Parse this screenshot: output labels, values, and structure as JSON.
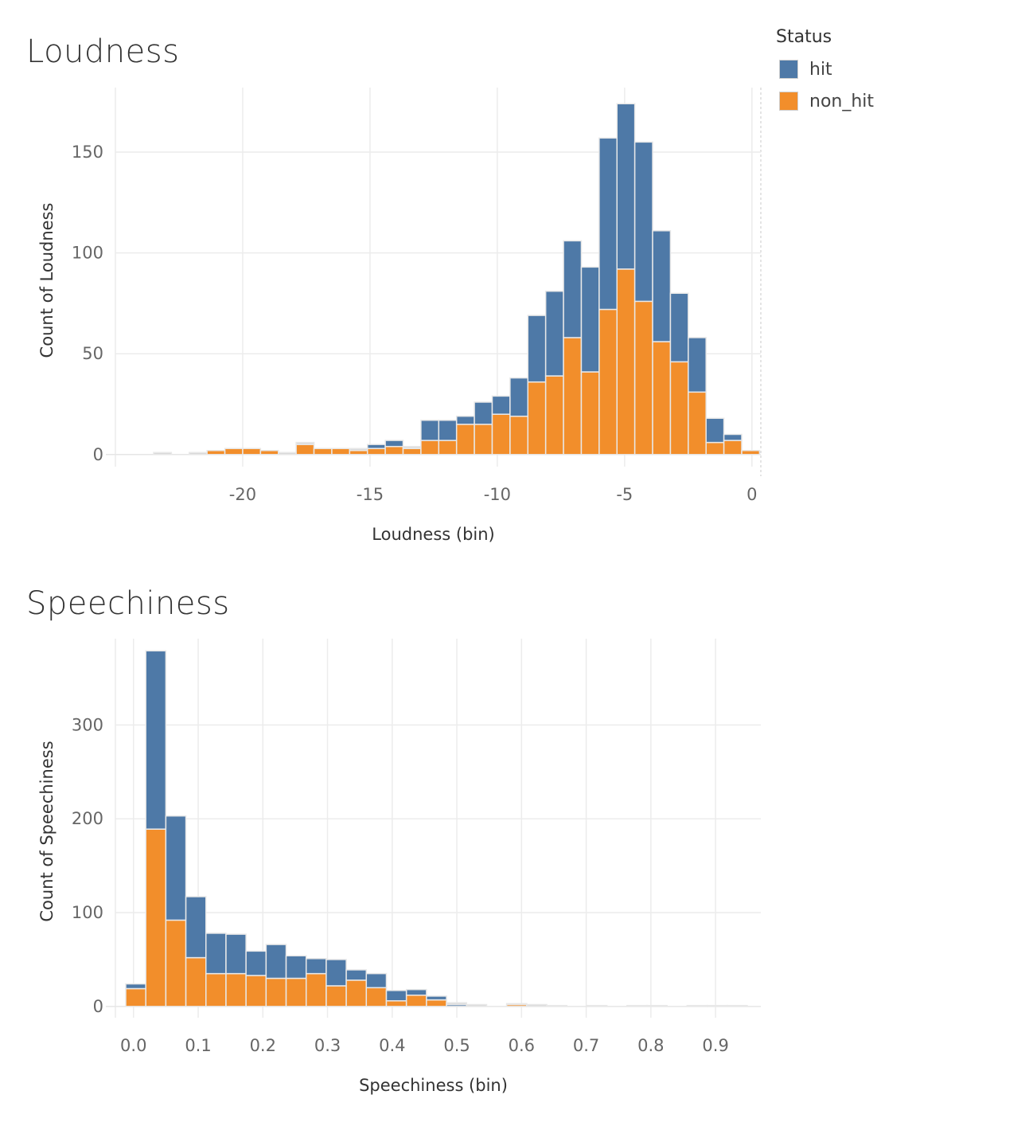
{
  "legend": {
    "title": "Status",
    "items": [
      {
        "label": "hit",
        "color": "#4e79a7"
      },
      {
        "label": "non_hit",
        "color": "#f28e2b"
      }
    ]
  },
  "chart_data": [
    {
      "type": "bar",
      "stacked": true,
      "title": "Loudness",
      "xlabel": "Loudness (bin)",
      "ylabel": "Count of Loudness",
      "bin_width": 0.7,
      "xlim": [
        -25.0,
        0.35
      ],
      "ylim": [
        -6,
        182
      ],
      "xticks": [
        -20,
        -15,
        -10,
        -5,
        0
      ],
      "yticks": [
        0,
        50,
        100,
        150
      ],
      "grid": true,
      "bins": [
        -23.5,
        -22.1,
        -21.4,
        -20.7,
        -20.0,
        -19.3,
        -18.6,
        -17.9,
        -17.2,
        -16.5,
        -15.8,
        -15.1,
        -14.4,
        -13.7,
        -13.0,
        -12.3,
        -11.6,
        -10.9,
        -10.2,
        -9.5,
        -8.8,
        -8.1,
        -7.4,
        -6.7,
        -6.0,
        -5.3,
        -4.6,
        -3.9,
        -3.2,
        -2.5,
        -1.8,
        -1.1,
        -0.4
      ],
      "series": [
        {
          "name": "non_hit",
          "color": "#f28e2b",
          "values": [
            0,
            0,
            2,
            3,
            3,
            2,
            0,
            5,
            3,
            3,
            2,
            3,
            4,
            3,
            7,
            7,
            15,
            15,
            20,
            19,
            36,
            39,
            58,
            41,
            72,
            92,
            76,
            56,
            46,
            31,
            6,
            7,
            2
          ]
        },
        {
          "name": "hit",
          "color": "#4e79a7",
          "values": [
            0,
            0,
            0,
            0,
            0,
            0,
            0,
            0,
            0,
            0,
            0,
            2,
            3,
            0,
            10,
            10,
            4,
            11,
            9,
            19,
            33,
            42,
            48,
            52,
            85,
            82,
            79,
            55,
            34,
            27,
            12,
            3,
            0
          ]
        },
        {
          "name": "",
          "color": "#d9d9d9",
          "values": [
            1,
            1,
            0,
            0,
            0,
            0,
            1,
            1,
            0,
            0,
            1,
            0,
            0,
            1,
            0,
            0,
            0,
            0,
            0,
            0,
            0,
            0,
            0,
            0,
            0,
            0,
            0,
            0,
            0,
            0,
            0,
            0,
            0
          ]
        }
      ]
    },
    {
      "type": "bar",
      "stacked": true,
      "title": "Speechiness",
      "xlabel": "Speechiness (bin)",
      "ylabel": "Count of Speechiness",
      "bin_width": 0.031,
      "xlim": [
        -0.028,
        0.97
      ],
      "ylim": [
        -12,
        392
      ],
      "xticks": [
        0.0,
        0.1,
        0.2,
        0.3,
        0.4,
        0.5,
        0.6,
        0.7,
        0.8,
        0.9
      ],
      "yticks": [
        0,
        100,
        200,
        300
      ],
      "grid": true,
      "bins": [
        -0.012,
        0.019,
        0.05,
        0.081,
        0.112,
        0.143,
        0.174,
        0.205,
        0.236,
        0.267,
        0.298,
        0.329,
        0.36,
        0.391,
        0.422,
        0.453,
        0.484,
        0.515,
        0.546,
        0.577,
        0.608,
        0.639,
        0.67,
        0.701,
        0.732,
        0.763,
        0.794,
        0.825,
        0.856,
        0.887,
        0.918
      ],
      "series": [
        {
          "name": "non_hit",
          "color": "#f28e2b",
          "values": [
            19,
            189,
            92,
            52,
            35,
            35,
            33,
            30,
            30,
            35,
            22,
            28,
            20,
            6,
            12,
            7,
            0,
            0,
            0,
            2,
            0,
            0,
            0,
            0,
            0,
            0,
            0,
            0,
            0,
            0,
            0
          ]
        },
        {
          "name": "hit",
          "color": "#4e79a7",
          "values": [
            5,
            190,
            111,
            65,
            43,
            42,
            26,
            36,
            24,
            16,
            28,
            11,
            15,
            11,
            6,
            4,
            2,
            0,
            0,
            0,
            0,
            0,
            0,
            0,
            0,
            0,
            0,
            0,
            0,
            0,
            0
          ]
        },
        {
          "name": "",
          "color": "#d9d9d9",
          "values": [
            0,
            0,
            0,
            0,
            0,
            0,
            0,
            0,
            0,
            0,
            0,
            0,
            0,
            0,
            0,
            0,
            2,
            2,
            0,
            1,
            2,
            1,
            0,
            1,
            0,
            1,
            1,
            0,
            1,
            1,
            1
          ]
        }
      ]
    }
  ]
}
